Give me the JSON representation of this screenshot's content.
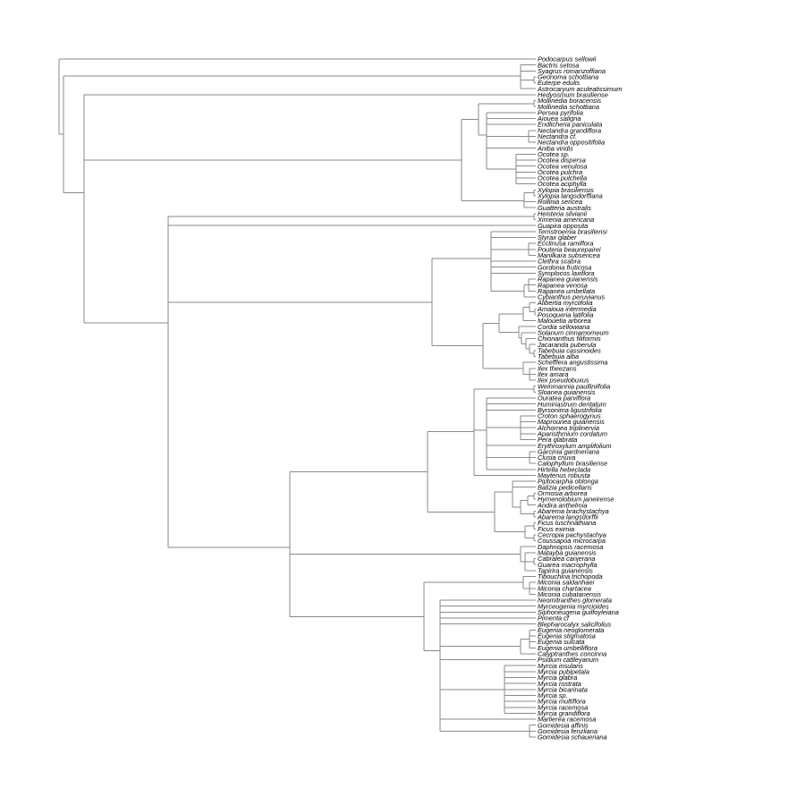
{
  "diagram_type": "phylogenetic tree (cladogram, tips aligned right)",
  "line_color": "#8a8a8a",
  "tree": [
    "Podocarpus sellowii",
    [
      [
        "Bactris setosa",
        "Syagrus romanzoffiana",
        [
          "Geonoma schottiana",
          "Euterpe edulis"
        ],
        "Astrocaryum aculeatissimum"
      ],
      [
        "Hedyosmum brasiliense",
        [
          [
            [
              "Mollinedia boracensis",
              "Mollinedia schottiana"
            ],
            [
              "Persea pyrifolia",
              "Aiouea saligna",
              "Endlicheria paniculata",
              [
                "Nectandra grandiflora",
                "Nectandra cf.",
                "Nectandra oppositifolia"
              ],
              "Aniba viridis",
              [
                "Ocotea sp.",
                "Ocotea dispersa",
                "Ocotea venulosa",
                "Ocotea pulchra",
                "Ocotea pulchella",
                "Ocotea aciphylla"
              ]
            ]
          ],
          [
            [
              "Xylopia brasiliensis",
              "Xylopia langsdorffiana"
            ],
            "Rollinia sericea",
            "Guatteria australis"
          ]
        ],
        [
          [
            "Heisteria silvianii",
            "Ximenia americana"
          ],
          "Guapira opposita",
          [
            [
              "Ternstroemia brasiliensi",
              "Styrax glaber",
              [
                "Ecclinusa ramiflora",
                "Pouteria beaurepairei",
                "Manilkara subsericea"
              ],
              "Clethra scabra",
              "Gordonia fruticosa",
              "Symplocos laxiflora",
              [
                [
                  "Rapanea guianensis",
                  "Rapanea venosa",
                  "Rapanea umbellata"
                ],
                "Cybianthus peruvianus"
              ]
            ],
            [
              [
                [
                  [
                    "Alibertia myrciifolia",
                    [
                      "Amaioua intermedia",
                      "Posoqueria latifolia"
                    ]
                  ],
                  "Malouetia arborea"
                ],
                [
                  "Cordia sellowiana",
                  [
                    "Solanum cinnamomeum",
                    [
                      "Chionanthus filiformis",
                      [
                        "Jacaranda puberula",
                        [
                          "Tabebuia cassinoides",
                          "Tabebuia alba"
                        ]
                      ]
                    ]
                  ]
                ]
              ],
              [
                "Schefflera angustissima",
                [
                  "Ilex theezans",
                  "Ilex amara",
                  "Ilex pseudobuxus"
                ]
              ]
            ]
          ],
          [
            [
              [
                [
                  "Weinmannia paulliniifolia",
                  "Sloanea guianensis"
                ],
                [
                  "Ouratea parviflora",
                  "Humiriastrum dentatum",
                  "Byrsonima ligustrifolia",
                  [
                    "Croton sphaerogynus",
                    "Maprounea guianensis",
                    "Alchornea triplinervia",
                    "Aparisthmium cordatum",
                    "Pera glabrata"
                  ],
                  "Erythroxylum amplifolium",
                  [
                    "Garcinia gardneriana",
                    "Clusia criuva",
                    "Calophyllum brasiliense"
                  ],
                  "Hirtella hebeclada"
                ],
                "Maytenus robusta"
              ],
              [
                [
                  "Piptocarpha oblonga",
                  "Balizia pedicellaris",
                  [
                    [
                      [
                        "Ormosia arborea",
                        "Hymenolobium janeirense"
                      ],
                      "Andira anthelmia"
                    ],
                    [
                      "Abarema brachystachya",
                      "Abarema langsdorffii"
                    ]
                  ]
                ],
                [
                  [
                    "Ficus luschnathiana",
                    "Ficus eximia"
                  ],
                  [
                    "Cecropia pachystachya",
                    "Coussapoa microcarpa"
                  ]
                ]
              ]
            ],
            [
              "Daphnopsis racemosa",
              [
                "Matayba guianensis",
                [
                  "Cabralea canjerana",
                  "Guarea macrophylla"
                ],
                "Tapirira guianensis"
              ]
            ],
            [
              [
                "Tibouchina trichopoda",
                [
                  "Miconia saldanhaei",
                  "Miconia chartacea",
                  "Miconia cubatanensis"
                ]
              ],
              [
                "Neomitranthes glomerata",
                "Myrceugenia myrcioides",
                "Siphoneugena guilfoyleiana",
                "Pimenta cf",
                "Blepharocalyx salicifolius",
                [
                  [
                    "Eugenia neoglomerata",
                    "Eugenia stigmatosa",
                    "Eugenia sulcata",
                    "Eugenia umbelliflora"
                  ],
                  "Calyptranthes concinna"
                ],
                "Psidium cattleyanum",
                [
                  "Myrcia insularis",
                  "Myrcia pubipetala",
                  "Myrcia glabra",
                  "Myrcia rostrata",
                  "Myrcia bicarinata",
                  "Myrcia sp.",
                  "Myrcia multiflora",
                  "Myrcia racemosa",
                  "Myrcia grandiflora"
                ],
                "Marlierea racemosa",
                [
                  "Gomidesia affinis",
                  "Gomidesia fenzliana",
                  "Gomidesia schaueriana"
                ]
              ]
            ]
          ]
        ]
      ]
    ]
  ],
  "taxa": [
    "Podocarpus sellowii",
    "Bactris setosa",
    "Syagrus romanzoffiana",
    "Geonoma schottiana",
    "Euterpe edulis",
    "Astrocaryum aculeatissimum",
    "Hedyosmum brasiliense",
    "Mollinedia boracensis",
    "Mollinedia schottiana",
    "Persea pyrifolia",
    "Aiouea saligna",
    "Endlicheria paniculata",
    "Nectandra grandiflora",
    "Nectandra cf.",
    "Nectandra oppositifolia",
    "Aniba viridis",
    "Ocotea sp.",
    "Ocotea dispersa",
    "Ocotea venulosa",
    "Ocotea pulchra",
    "Ocotea pulchella",
    "Ocotea aciphylla",
    "Xylopia brasiliensis",
    "Xylopia langsdorffiana",
    "Rollinia sericea",
    "Guatteria australis",
    "Heisteria silvianii",
    "Ximenia americana",
    "Guapira opposita",
    "Ternstroemia brasiliensi",
    "Styrax glaber",
    "Ecclinusa ramiflora",
    "Pouteria beaurepairei",
    "Manilkara subsericea",
    "Clethra scabra",
    "Gordonia fruticosa",
    "Symplocos laxiflora",
    "Rapanea guianensis",
    "Rapanea venosa",
    "Rapanea umbellata",
    "Cybianthus peruvianus",
    "Alibertia myrciifolia",
    "Amaioua intermedia",
    "Posoqueria latifolia",
    "Malouetia arborea",
    "Cordia sellowiana",
    "Solanum cinnamomeum",
    "Chionanthus filiformis",
    "Jacaranda puberula",
    "Tabebuia cassinoides",
    "Tabebuia alba",
    "Schefflera angustissima",
    "Ilex theezans",
    "Ilex amara",
    "Ilex pseudobuxus",
    "Weinmannia paulliniifolia",
    "Sloanea guianensis",
    "Ouratea parviflora",
    "Humiriastrum dentatum",
    "Byrsonima ligustrifolia",
    "Croton sphaerogynus",
    "Maprounea guianensis",
    "Alchornea triplinervia",
    "Aparisthmium cordatum",
    "Pera glabrata",
    "Erythroxylum amplifolium",
    "Garcinia gardneriana",
    "Clusia criuva",
    "Calophyllum brasiliense",
    "Hirtella hebeclada",
    "Maytenus robusta",
    "Piptocarpha oblonga",
    "Balizia pedicellaris",
    "Ormosia arborea",
    "Hymenolobium janeirense",
    "Andira anthelmia",
    "Abarema brachystachya",
    "Abarema langsdorffii",
    "Ficus luschnathiana",
    "Ficus eximia",
    "Cecropia pachystachya",
    "Coussapoa microcarpa",
    "Daphnopsis racemosa",
    "Matayba guianensis",
    "Cabralea canjerana",
    "Guarea macrophylla",
    "Tapirira guianensis",
    "Tibouchina trichopoda",
    "Miconia saldanhaei",
    "Miconia chartacea",
    "Miconia cubatanensis",
    "Neomitranthes glomerata",
    "Myrceugenia myrcioides",
    "Siphoneugena guilfoyleiana",
    "Pimenta cf",
    "Blepharocalyx salicifolius",
    "Eugenia neoglomerata",
    "Eugenia stigmatosa",
    "Eugenia sulcata",
    "Eugenia umbelliflora",
    "Calyptranthes concinna",
    "Psidium cattleyanum",
    "Myrcia insularis",
    "Myrcia pubipetala",
    "Myrcia glabra",
    "Myrcia rostrata",
    "Myrcia bicarinata",
    "Myrcia sp.",
    "Myrcia multiflora",
    "Myrcia racemosa",
    "Myrcia grandiflora",
    "Marlierea racemosa",
    "Gomidesia affinis",
    "Gomidesia fenzliana",
    "Gomidesia schaueriana"
  ]
}
